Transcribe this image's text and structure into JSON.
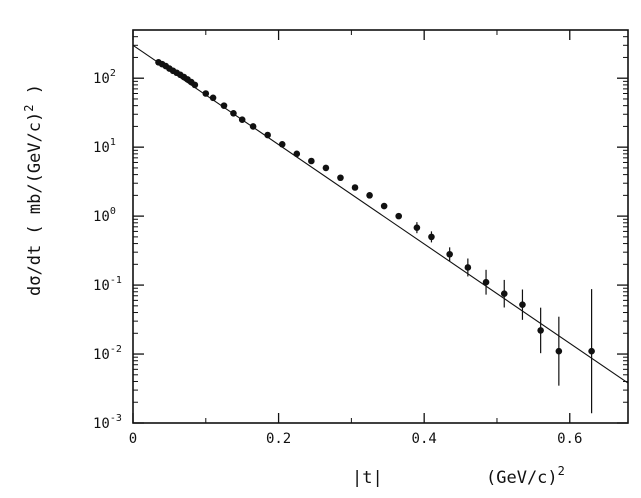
{
  "chart_data": {
    "type": "scatter",
    "xlabel": "|t|",
    "xunit": "(GeV/c)",
    "xunit_exp": "2",
    "ylabel_main": "dσ/dt   ( mb/(GeV/c)",
    "ylabel_exp": "2",
    "ylabel_close": " )",
    "xlim": [
      0,
      0.68
    ],
    "ylim": [
      0.001,
      500
    ],
    "yscale": "log",
    "x_ticks": [
      {
        "value": 0,
        "label": "0"
      },
      {
        "value": 0.2,
        "label": "0.2"
      },
      {
        "value": 0.4,
        "label": "0.4"
      },
      {
        "value": 0.6,
        "label": "0.6"
      }
    ],
    "y_ticks": [
      {
        "exp": -3,
        "base": "10",
        "sup": "-3"
      },
      {
        "exp": -2,
        "base": "10",
        "sup": "-2"
      },
      {
        "exp": -1,
        "base": "10",
        "sup": "-1"
      },
      {
        "exp": 0,
        "base": "10",
        "sup": "0"
      },
      {
        "exp": 1,
        "base": "10",
        "sup": "1"
      },
      {
        "exp": 2,
        "base": "10",
        "sup": "2"
      }
    ],
    "fit_line": {
      "x": [
        0,
        0.68
      ],
      "y": [
        300,
        0.0038
      ]
    },
    "series": [
      {
        "points": [
          {
            "x": 0.035,
            "y": 170,
            "err": 0
          },
          {
            "x": 0.04,
            "y": 160,
            "err": 0
          },
          {
            "x": 0.045,
            "y": 150,
            "err": 0
          },
          {
            "x": 0.05,
            "y": 138,
            "err": 0
          },
          {
            "x": 0.055,
            "y": 128,
            "err": 0
          },
          {
            "x": 0.06,
            "y": 120,
            "err": 0
          },
          {
            "x": 0.065,
            "y": 112,
            "err": 0
          },
          {
            "x": 0.07,
            "y": 104,
            "err": 0
          },
          {
            "x": 0.075,
            "y": 96,
            "err": 0
          },
          {
            "x": 0.08,
            "y": 88,
            "err": 0
          },
          {
            "x": 0.085,
            "y": 80,
            "err": 0
          },
          {
            "x": 0.1,
            "y": 60,
            "err": 0
          },
          {
            "x": 0.11,
            "y": 52,
            "err": 0
          },
          {
            "x": 0.125,
            "y": 40,
            "err": 0
          },
          {
            "x": 0.138,
            "y": 31,
            "err": 0
          },
          {
            "x": 0.15,
            "y": 25,
            "err": 0
          },
          {
            "x": 0.165,
            "y": 20,
            "err": 0
          },
          {
            "x": 0.185,
            "y": 15,
            "err": 0
          },
          {
            "x": 0.205,
            "y": 11,
            "err": 0
          },
          {
            "x": 0.225,
            "y": 8,
            "err": 0
          },
          {
            "x": 0.245,
            "y": 6.3,
            "err": 0
          },
          {
            "x": 0.265,
            "y": 5,
            "err": 0
          },
          {
            "x": 0.285,
            "y": 3.6,
            "err": 0
          },
          {
            "x": 0.305,
            "y": 2.6,
            "err": 0
          },
          {
            "x": 0.325,
            "y": 2.0,
            "err": 0
          },
          {
            "x": 0.345,
            "y": 1.4,
            "err": 0
          },
          {
            "x": 0.365,
            "y": 1.0,
            "err": 0
          },
          {
            "x": 0.39,
            "y": 0.68,
            "err": 0.08
          },
          {
            "x": 0.41,
            "y": 0.5,
            "err": 0.08
          },
          {
            "x": 0.435,
            "y": 0.28,
            "err": 0.1
          },
          {
            "x": 0.46,
            "y": 0.18,
            "err": 0.13
          },
          {
            "x": 0.485,
            "y": 0.11,
            "err": 0.18
          },
          {
            "x": 0.51,
            "y": 0.075,
            "err": 0.2
          },
          {
            "x": 0.535,
            "y": 0.052,
            "err": 0.22
          },
          {
            "x": 0.56,
            "y": 0.022,
            "err": 0.33
          },
          {
            "x": 0.585,
            "y": 0.011,
            "err": 0.5
          },
          {
            "x": 0.63,
            "y": 0.011,
            "err": 0.9
          }
        ]
      }
    ]
  }
}
